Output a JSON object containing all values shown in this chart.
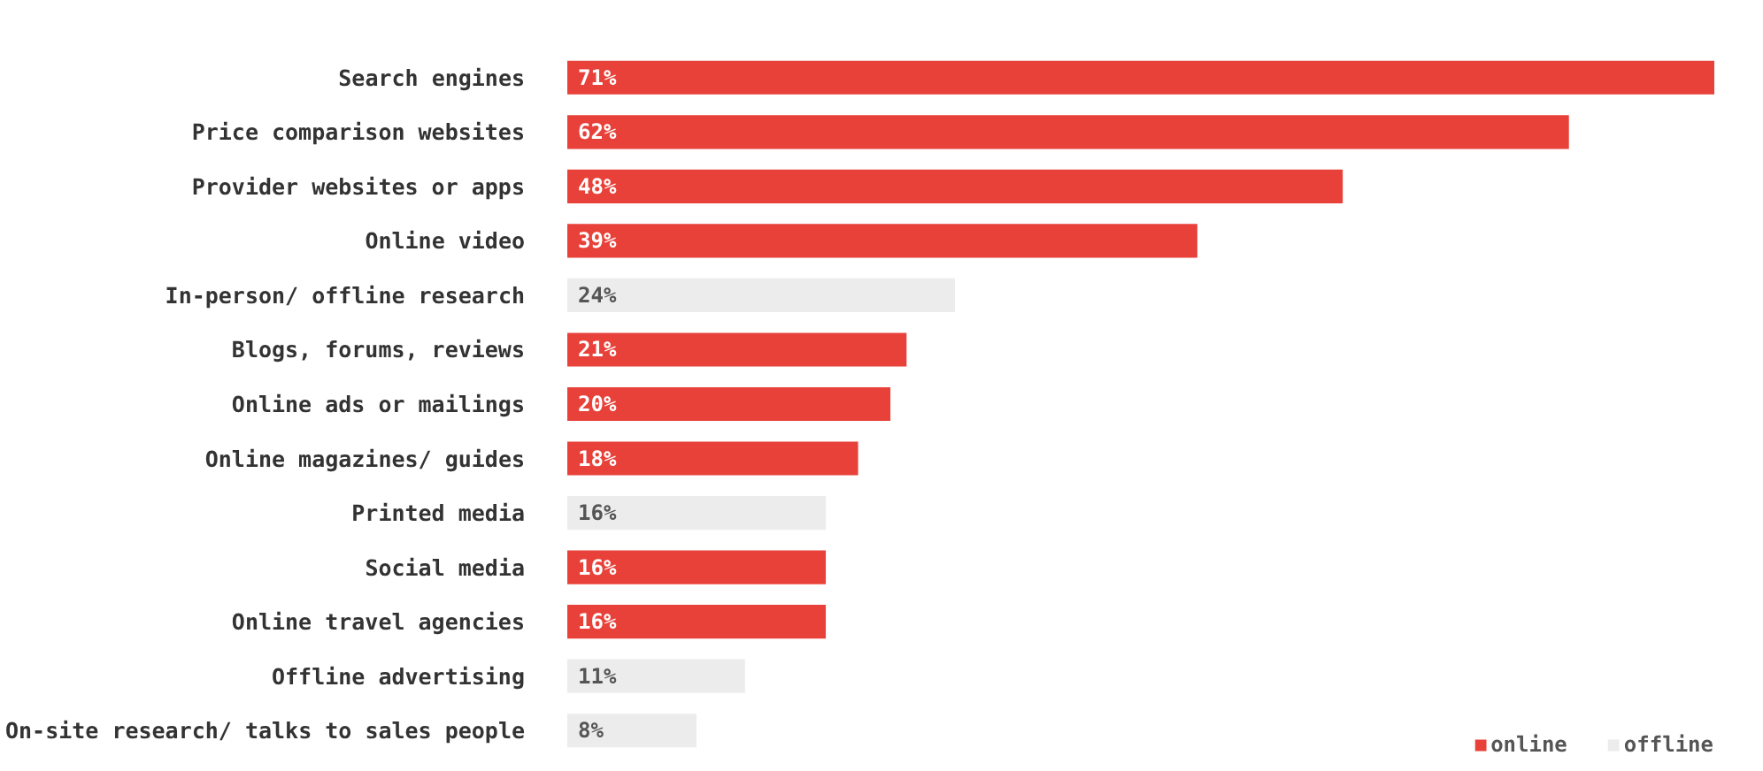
{
  "chart_data": {
    "type": "bar",
    "orientation": "horizontal",
    "categories": [
      "Search engines",
      "Price comparison websites",
      "Provider websites or apps",
      "Online video",
      "In-person/ offline research",
      "Blogs, forums, reviews",
      "Online ads or mailings",
      "Online magazines/ guides",
      "Printed media",
      "Social media",
      "Online travel agencies",
      "Offline advertising",
      "On-site research/ talks to sales people"
    ],
    "series": [
      {
        "name": "online",
        "color": "#e8413a",
        "values": [
          71,
          62,
          48,
          39,
          null,
          21,
          20,
          18,
          null,
          16,
          16,
          null,
          null
        ],
        "value_labels": [
          "71%",
          "62%",
          "48%",
          "39%",
          null,
          "21%",
          "20%",
          "18%",
          null,
          "16%",
          "16%",
          null,
          null
        ]
      },
      {
        "name": "offline",
        "color": "#ececec",
        "values": [
          null,
          null,
          null,
          null,
          24,
          null,
          null,
          null,
          16,
          null,
          null,
          11,
          8
        ],
        "value_labels": [
          null,
          null,
          null,
          null,
          "24%",
          null,
          null,
          null,
          "16%",
          null,
          null,
          "11%",
          "8%"
        ]
      }
    ],
    "legend": "bottom right",
    "grid": false,
    "tick_labels": "y"
  }
}
